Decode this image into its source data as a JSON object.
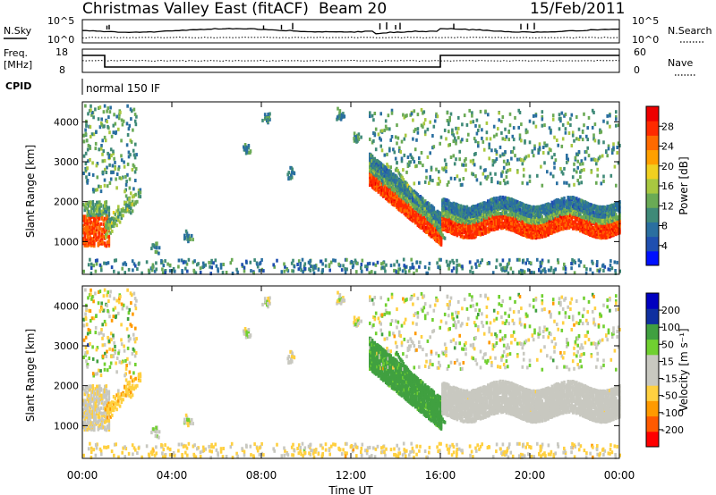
{
  "header": {
    "radar": "Christmas Valley East (fitACF)",
    "beam": "Beam 20",
    "date": "15/Feb/2011"
  },
  "strip": {
    "nsky_label": "N.Sky",
    "nsky_ticks": [
      "10^5",
      "10^0"
    ],
    "nsearch_label": "N.Search",
    "freq_label": "Freq.",
    "freq_unit": "[MHz]",
    "freq_ticks": [
      "18",
      "8"
    ],
    "nave_ticks": [
      "60",
      "0"
    ],
    "nave_label": "Nave",
    "cpid_label": "CPID",
    "cpid_value": "normal 150 IF"
  },
  "colors": {
    "power_scale": [
      "#0010ff",
      "#1f4fb0",
      "#2a6fa0",
      "#3f8a78",
      "#6aaa55",
      "#a8c840",
      "#f0d020",
      "#ffa000",
      "#ff6a00",
      "#ff2a00",
      "#ee0000"
    ],
    "velocity_scale": [
      "#ff0000",
      "#ff5a00",
      "#ff9a00",
      "#ffd040",
      "#c8c8c0",
      "#c8c8c0",
      "#70d030",
      "#40a040",
      "#1030a0",
      "#0000c0"
    ]
  },
  "chart_data": [
    {
      "type": "heatmap",
      "name": "power",
      "xlabel": "",
      "ylabel": "Slant Range [km]",
      "ylim": [
        180,
        4500
      ],
      "xlim_hours": [
        0,
        24
      ],
      "yticks": [
        "1000",
        "2000",
        "3000",
        "4000"
      ],
      "colorbar": {
        "label": "Power [dB]",
        "ticks": [
          "4",
          "8",
          "12",
          "16",
          "20",
          "24",
          "28"
        ],
        "range": [
          0,
          32
        ]
      }
    },
    {
      "type": "heatmap",
      "name": "velocity",
      "xlabel": "Time UT",
      "ylabel": "Slant Range [km]",
      "ylim": [
        180,
        4500
      ],
      "xlim_hours": [
        0,
        24
      ],
      "yticks": [
        "1000",
        "2000",
        "3000",
        "4000"
      ],
      "xticks": [
        "00:00",
        "04:00",
        "08:00",
        "12:00",
        "16:00",
        "20:00",
        "00:00"
      ],
      "colorbar": {
        "label": "Velocity [m s⁻¹]",
        "ticks": [
          "-200",
          "-100",
          "-50",
          "-15",
          "15",
          "50",
          "100",
          "200"
        ]
      }
    }
  ]
}
